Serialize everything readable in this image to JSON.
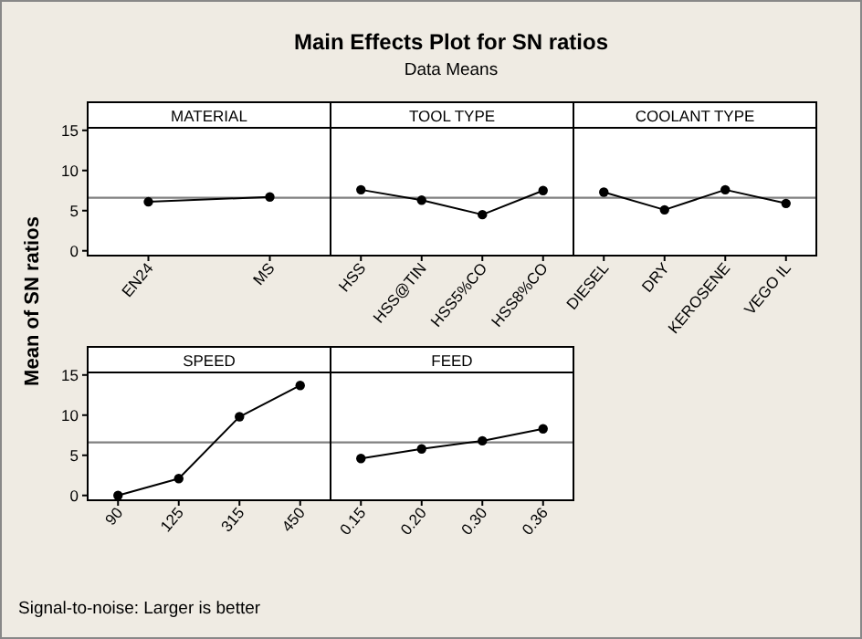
{
  "chart_data": [
    {
      "type": "line",
      "ylabel": "Mean of SN ratios",
      "annotations": [
        "Signal-to-noise: Larger is better"
      ],
      "legend_title": "MATERIAL",
      "categories": [
        "EN24",
        "MS"
      ],
      "series": [
        {
          "color": "#000000",
          "values": [
            6.1,
            6.7
          ]
        }
      ],
      "ylim": [
        -0.6,
        18.5
      ],
      "yticks": [
        0,
        5,
        10,
        15
      ],
      "ref_lines": [
        {
          "axis": "y",
          "value": 6.6,
          "color": "#808080"
        }
      ],
      "marker": "circle",
      "line_style": "solid"
    },
    {
      "type": "line",
      "title": "Main Effects Plot for SN ratios",
      "subtitle": "Data Means",
      "legend_title": "TOOL TYPE",
      "categories": [
        "HSS",
        "HSS@TIN",
        "HSS5%CO",
        "HSS8%CO"
      ],
      "series": [
        {
          "color": "#000000",
          "values": [
            7.6,
            6.3,
            4.5,
            7.5
          ]
        }
      ],
      "ylim": [
        -0.6,
        18.5
      ],
      "yticks": [
        0,
        5,
        10,
        15
      ],
      "ref_lines": [
        {
          "axis": "y",
          "value": 6.6,
          "color": "#808080"
        }
      ],
      "marker": "circle",
      "line_style": "solid",
      "tick_labels": "x"
    },
    {
      "type": "line",
      "legend_title": "COOLANT TYPE",
      "categories": [
        "DIESEL",
        "DRY",
        "KEROSENE",
        "VEGO IL"
      ],
      "series": [
        {
          "color": "#000000",
          "values": [
            7.3,
            5.1,
            7.6,
            5.9
          ]
        }
      ],
      "ylim": [
        -0.6,
        18.5
      ],
      "yticks": [
        0,
        5,
        10,
        15
      ],
      "ref_lines": [
        {
          "axis": "y",
          "value": 6.6,
          "color": "#808080"
        }
      ],
      "marker": "circle",
      "line_style": "solid",
      "tick_labels": "x"
    },
    {
      "type": "line",
      "legend_title": "SPEED",
      "categories": [
        "90",
        "125",
        "315",
        "450"
      ],
      "series": [
        {
          "color": "#000000",
          "values": [
            0,
            2.1,
            9.8,
            13.7
          ]
        }
      ],
      "ylim": [
        -0.6,
        18.5
      ],
      "yticks": [
        0,
        5,
        10,
        15
      ],
      "ref_lines": [
        {
          "axis": "y",
          "value": 6.6,
          "color": "#808080"
        }
      ],
      "marker": "circle",
      "line_style": "solid"
    },
    {
      "type": "line",
      "legend_title": "FEED",
      "categories": [
        "0.15",
        "0.20",
        "0.30",
        "0.36"
      ],
      "series": [
        {
          "color": "#000000",
          "values": [
            4.6,
            5.8,
            6.8,
            8.3
          ]
        }
      ],
      "ylim": [
        -0.6,
        18.5
      ],
      "yticks": [
        0,
        5,
        10,
        15
      ],
      "ref_lines": [
        {
          "axis": "y",
          "value": 6.6,
          "color": "#808080"
        }
      ],
      "marker": "circle",
      "line_style": "solid",
      "tick_labels": "x"
    }
  ]
}
